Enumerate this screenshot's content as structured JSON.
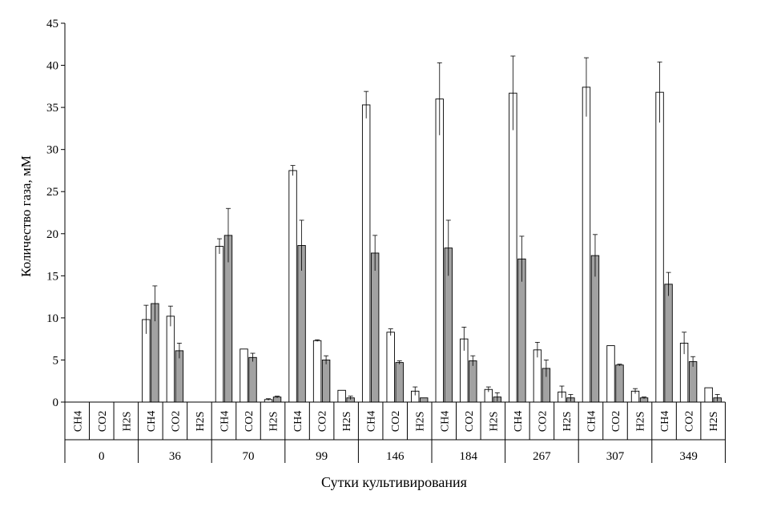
{
  "chart_data": {
    "type": "bar",
    "ylabel": "Количество газа, мМ",
    "xlabel": "Сутки культивирования",
    "ylim": [
      0,
      45
    ],
    "yticks": [
      0,
      5,
      10,
      15,
      20,
      25,
      30,
      35,
      40,
      45
    ],
    "gases": [
      "CH4",
      "CO2",
      "H2S"
    ],
    "days": [
      "0",
      "36",
      "70",
      "99",
      "146",
      "184",
      "267",
      "307",
      "349"
    ],
    "series": [
      {
        "color": "#ffffff",
        "values": [
          [
            null,
            null,
            null
          ],
          [
            9.8,
            10.2,
            null
          ],
          [
            18.5,
            6.3,
            0.3
          ],
          [
            27.5,
            7.3,
            1.4
          ],
          [
            35.3,
            8.3,
            1.3
          ],
          [
            36.0,
            7.5,
            1.5
          ],
          [
            36.7,
            6.2,
            1.2
          ],
          [
            37.4,
            6.7,
            1.3
          ],
          [
            36.8,
            7.0,
            1.7
          ]
        ],
        "errors": [
          [
            0,
            0,
            0
          ],
          [
            1.7,
            1.2,
            0
          ],
          [
            0.9,
            0,
            0.1
          ],
          [
            0.6,
            0.1,
            0
          ],
          [
            1.6,
            0.4,
            0.5
          ],
          [
            4.3,
            1.4,
            0.3
          ],
          [
            4.4,
            0.9,
            0.7
          ],
          [
            3.5,
            0,
            0.3
          ],
          [
            3.6,
            1.3,
            0
          ]
        ]
      },
      {
        "color": "#9a9a9a",
        "values": [
          [
            null,
            null,
            null
          ],
          [
            11.7,
            6.1,
            null
          ],
          [
            19.8,
            5.3,
            0.6
          ],
          [
            18.6,
            5.0,
            0.5
          ],
          [
            17.7,
            4.7,
            0.5
          ],
          [
            18.3,
            4.9,
            0.6
          ],
          [
            17.0,
            4.0,
            0.5
          ],
          [
            17.4,
            4.4,
            0.5
          ],
          [
            14.0,
            4.8,
            0.5
          ]
        ],
        "errors": [
          [
            0,
            0,
            0
          ],
          [
            2.1,
            0.9,
            0
          ],
          [
            3.2,
            0.5,
            0.1
          ],
          [
            3.0,
            0.5,
            0.2
          ],
          [
            2.1,
            0.2,
            0
          ],
          [
            3.3,
            0.6,
            0.5
          ],
          [
            2.7,
            1.0,
            0.4
          ],
          [
            2.5,
            0.1,
            0.1
          ],
          [
            1.4,
            0.6,
            0.4
          ]
        ]
      }
    ]
  }
}
